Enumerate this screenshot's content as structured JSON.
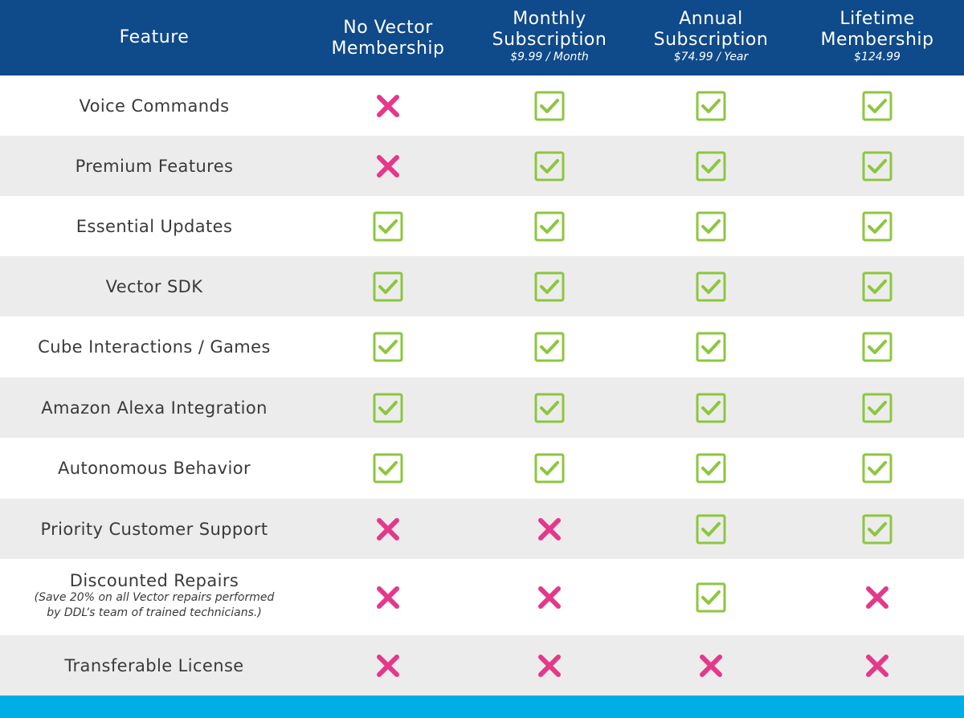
{
  "header": {
    "feature_label": "Feature",
    "plans": [
      {
        "name": "No Vector Membership",
        "name_lines": [
          "No Vector",
          "Membership"
        ],
        "price": ""
      },
      {
        "name": "Monthly Subscription",
        "name_lines": [
          "Monthly",
          "Subscription"
        ],
        "price": "$9.99 / Month"
      },
      {
        "name": "Annual Subscription",
        "name_lines": [
          "Annual",
          "Subscription"
        ],
        "price": "$74.99 / Year"
      },
      {
        "name": "Lifetime Membership",
        "name_lines": [
          "Lifetime",
          "Membership"
        ],
        "price": "$124.99"
      }
    ]
  },
  "rows": [
    {
      "feature": "Voice Commands",
      "note": "",
      "marks": [
        "no",
        "yes",
        "yes",
        "yes"
      ]
    },
    {
      "feature": "Premium Features",
      "note": "",
      "marks": [
        "no",
        "yes",
        "yes",
        "yes"
      ]
    },
    {
      "feature": "Essential Updates",
      "note": "",
      "marks": [
        "yes",
        "yes",
        "yes",
        "yes"
      ]
    },
    {
      "feature": "Vector SDK",
      "note": "",
      "marks": [
        "yes",
        "yes",
        "yes",
        "yes"
      ]
    },
    {
      "feature": "Cube Interactions / Games",
      "note": "",
      "marks": [
        "yes",
        "yes",
        "yes",
        "yes"
      ]
    },
    {
      "feature": "Amazon Alexa Integration",
      "note": "",
      "marks": [
        "yes",
        "yes",
        "yes",
        "yes"
      ]
    },
    {
      "feature": "Autonomous Behavior",
      "note": "",
      "marks": [
        "yes",
        "yes",
        "yes",
        "yes"
      ]
    },
    {
      "feature": "Priority Customer Support",
      "note": "",
      "marks": [
        "no",
        "no",
        "yes",
        "yes"
      ]
    },
    {
      "feature": "Discounted Repairs",
      "note_lines": [
        "(Save 20% on all Vector repairs performed",
        "by DDL’s team of trained technicians.)"
      ],
      "marks": [
        "no",
        "no",
        "yes",
        "no"
      ]
    },
    {
      "feature": "Transferable License",
      "note": "",
      "marks": [
        "no",
        "no",
        "no",
        "no"
      ]
    }
  ],
  "colors": {
    "header_bg": "#0f4a8a",
    "row_alt_bg": "#ececec",
    "check_green": "#8dc63f",
    "cross_pink": "#e5388a",
    "footer_bar": "#00aee6"
  },
  "icons": {
    "yes": "checkbox-checked-icon",
    "no": "cross-icon"
  }
}
